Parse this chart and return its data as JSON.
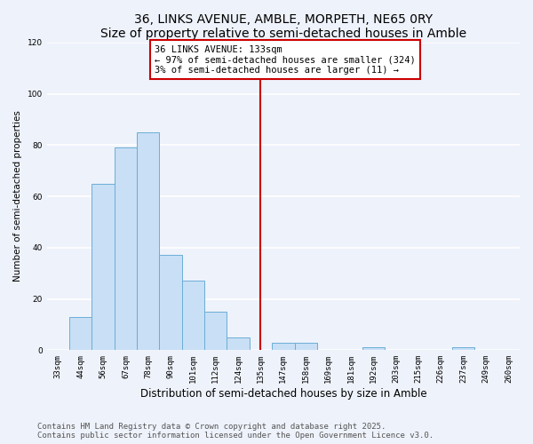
{
  "title": "36, LINKS AVENUE, AMBLE, MORPETH, NE65 0RY",
  "subtitle": "Size of property relative to semi-detached houses in Amble",
  "xlabel": "Distribution of semi-detached houses by size in Amble",
  "ylabel": "Number of semi-detached properties",
  "bin_labels": [
    "33sqm",
    "44sqm",
    "56sqm",
    "67sqm",
    "78sqm",
    "90sqm",
    "101sqm",
    "112sqm",
    "124sqm",
    "135sqm",
    "147sqm",
    "158sqm",
    "169sqm",
    "181sqm",
    "192sqm",
    "203sqm",
    "215sqm",
    "226sqm",
    "237sqm",
    "249sqm",
    "260sqm"
  ],
  "bar_heights": [
    0,
    13,
    65,
    79,
    85,
    37,
    27,
    15,
    5,
    0,
    3,
    3,
    0,
    0,
    1,
    0,
    0,
    0,
    1,
    0,
    0
  ],
  "bar_color": "#c8dff5",
  "bar_edge_color": "#6baed6",
  "vline_bin": 9,
  "vline_color": "#cc0000",
  "annotation_title": "36 LINKS AVENUE: 133sqm",
  "annotation_line2": "← 97% of semi-detached houses are smaller (324)",
  "annotation_line3": "3% of semi-detached houses are larger (11) →",
  "annotation_box_color": "#ffffff",
  "annotation_box_edge": "#cc0000",
  "ylim": [
    0,
    120
  ],
  "yticks": [
    0,
    20,
    40,
    60,
    80,
    100,
    120
  ],
  "footer1": "Contains HM Land Registry data © Crown copyright and database right 2025.",
  "footer2": "Contains public sector information licensed under the Open Government Licence v3.0.",
  "bg_color": "#eef2fb",
  "grid_color": "#ffffff",
  "title_fontsize": 10,
  "subtitle_fontsize": 8.5,
  "xlabel_fontsize": 8.5,
  "ylabel_fontsize": 7.5,
  "tick_fontsize": 6.5,
  "annot_fontsize": 7.5,
  "footer_fontsize": 6.5
}
